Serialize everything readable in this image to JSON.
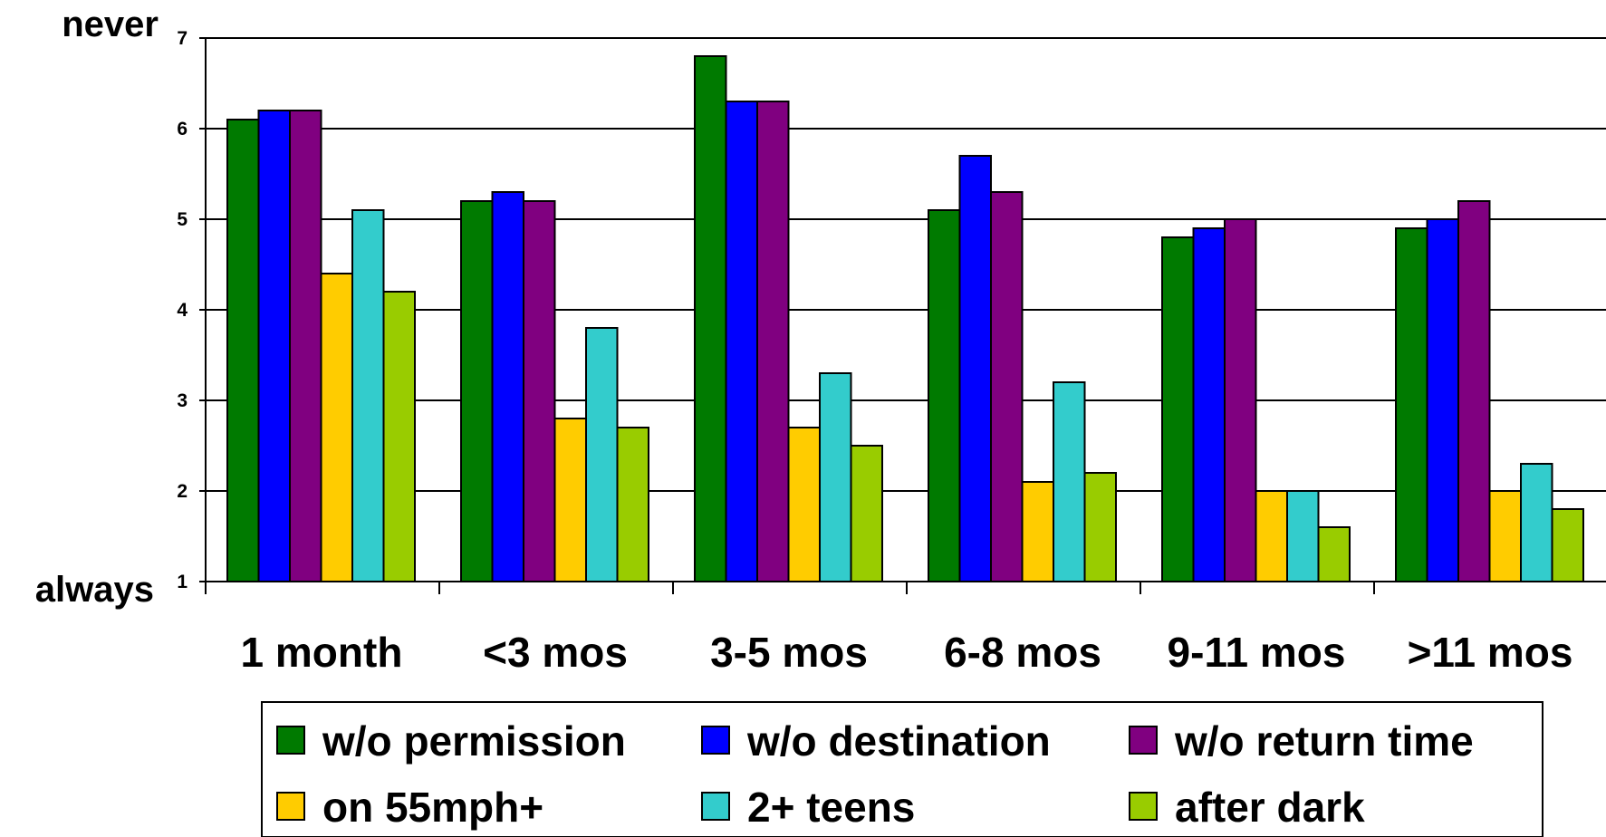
{
  "chart_data": {
    "type": "bar",
    "ylim": [
      1,
      7
    ],
    "yticks": [
      "1",
      "2",
      "3",
      "4",
      "5",
      "6",
      "7"
    ],
    "y_top_label": "never",
    "y_bottom_label": "always",
    "grid": true,
    "legend_position": "bottom",
    "categories": [
      "1 month",
      "<3 mos",
      "3-5 mos",
      "6-8 mos",
      "9-11 mos",
      ">11 mos"
    ],
    "series": [
      {
        "name": "w/o permission",
        "color": "#007A00",
        "values": [
          6.1,
          5.2,
          6.8,
          5.1,
          4.8,
          4.9
        ]
      },
      {
        "name": "w/o destination",
        "color": "#0000FF",
        "values": [
          6.2,
          5.3,
          6.3,
          5.7,
          4.9,
          5.0
        ]
      },
      {
        "name": "w/o return time",
        "color": "#800080",
        "values": [
          6.2,
          5.2,
          6.3,
          5.3,
          5.0,
          5.2
        ]
      },
      {
        "name": "on 55mph+",
        "color": "#FFCC00",
        "values": [
          4.4,
          2.8,
          2.7,
          2.1,
          2.0,
          2.0
        ]
      },
      {
        "name": "2+ teens",
        "color": "#33CCCC",
        "values": [
          5.1,
          3.8,
          3.3,
          3.2,
          2.0,
          2.3
        ]
      },
      {
        "name": "after dark",
        "color": "#99CC00",
        "values": [
          4.2,
          2.7,
          2.5,
          2.2,
          1.6,
          1.8
        ]
      }
    ]
  }
}
